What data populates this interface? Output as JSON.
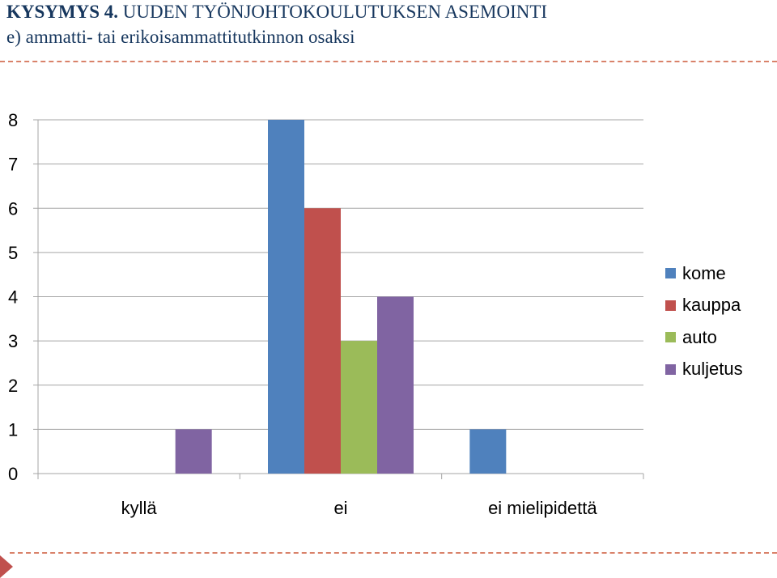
{
  "slide": {
    "title_bold": "KYSYMYS 4.",
    "title_rest": " UUDEN TYÖNJOHTOKOULUTUKSEN ASEMOINTI",
    "subtitle": "e) ammatti- tai erikoisammattitutkinnon osaksi"
  },
  "colors": {
    "title": "#17375e",
    "separator": "#d9826a",
    "accent_arrow": "#c0504d",
    "grid": "#a6a6a6"
  },
  "chart_data": {
    "type": "bar",
    "categories": [
      "kyllä",
      "ei",
      "ei mielipidettä"
    ],
    "series": [
      {
        "name": "kome",
        "color": "#4f81bd",
        "values": [
          0,
          8,
          1
        ]
      },
      {
        "name": "kauppa",
        "color": "#c0504d",
        "values": [
          0,
          6,
          0
        ]
      },
      {
        "name": "auto",
        "color": "#9bbb59",
        "values": [
          0,
          3,
          0
        ]
      },
      {
        "name": "kuljetus",
        "color": "#8064a2",
        "values": [
          1,
          4,
          0
        ]
      }
    ],
    "title": "",
    "xlabel": "",
    "ylabel": "",
    "ylim": [
      0,
      8
    ],
    "yticks": [
      "0",
      "1",
      "2",
      "3",
      "4",
      "5",
      "6",
      "7",
      "8"
    ],
    "grid": true,
    "legend_position": "right"
  }
}
